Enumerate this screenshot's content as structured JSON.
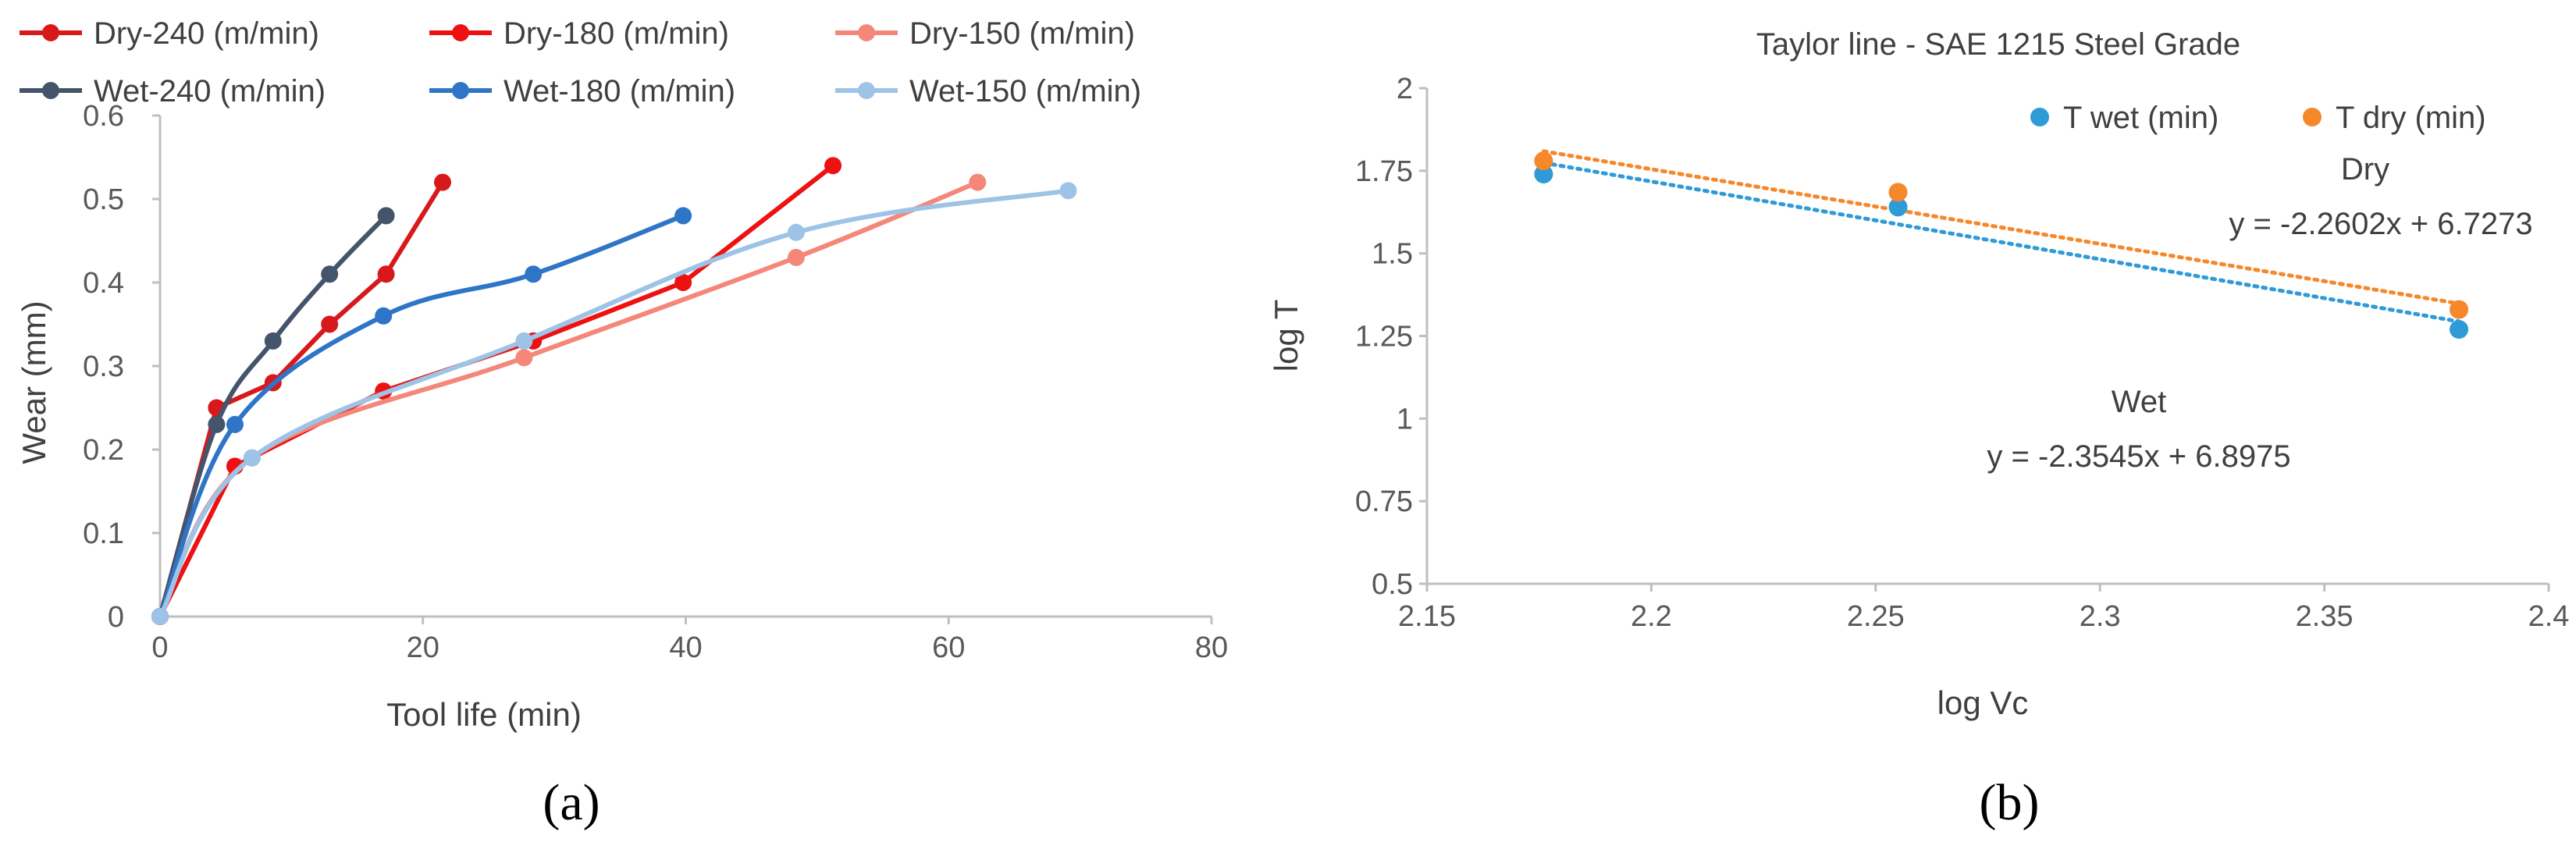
{
  "chart_data": [
    {
      "type": "line",
      "panel_label": "(a)",
      "title": "",
      "xlabel": "Tool life (min)",
      "ylabel": "Wear (mm)",
      "xlim": [
        0,
        80
      ],
      "ylim": [
        0,
        0.6
      ],
      "x_ticks": [
        "0",
        "20",
        "40",
        "60",
        "80"
      ],
      "y_ticks": [
        "0",
        "0.1",
        "0.2",
        "0.3",
        "0.4",
        "0.5",
        "0.6"
      ],
      "legend_position": "top",
      "grid": false,
      "series": [
        {
          "name": "Dry-240 (m/min)",
          "color": "#d7191c",
          "marker": "circle",
          "smooth": false,
          "x": [
            0,
            4.3,
            8.6,
            12.9,
            17.2,
            21.5
          ],
          "y": [
            0,
            0.25,
            0.28,
            0.35,
            0.41,
            0.52
          ]
        },
        {
          "name": "Dry-180 (m/min)",
          "color": "#ee1111",
          "marker": "circle",
          "smooth": false,
          "x": [
            0,
            5.7,
            17,
            28.4,
            39.8,
            51.2
          ],
          "y": [
            0,
            0.18,
            0.27,
            0.33,
            0.4,
            0.54
          ]
        },
        {
          "name": "Dry-150 (m/min)",
          "color": "#f4877a",
          "marker": "circle",
          "smooth": true,
          "x": [
            0,
            7,
            27.7,
            48.4,
            62.2
          ],
          "y": [
            0,
            0.19,
            0.31,
            0.43,
            0.52
          ]
        },
        {
          "name": "Wet-240 (m/min)",
          "color": "#44546a",
          "marker": "circle",
          "smooth": true,
          "x": [
            0,
            4.3,
            8.6,
            12.9,
            17.2
          ],
          "y": [
            0,
            0.23,
            0.33,
            0.41,
            0.48
          ]
        },
        {
          "name": "Wet-180 (m/min)",
          "color": "#2e75c8",
          "marker": "circle",
          "smooth": true,
          "x": [
            0,
            5.7,
            17,
            28.4,
            39.8
          ],
          "y": [
            0,
            0.23,
            0.36,
            0.41,
            0.48
          ]
        },
        {
          "name": "Wet-150 (m/min)",
          "color": "#9dc3e6",
          "marker": "circle",
          "smooth": true,
          "x": [
            0,
            7,
            27.7,
            48.4,
            69.1
          ],
          "y": [
            0,
            0.19,
            0.33,
            0.46,
            0.51
          ]
        }
      ]
    },
    {
      "type": "scatter",
      "panel_label": "(b)",
      "title": "Taylor line - SAE 1215 Steel Grade",
      "xlabel": "log Vc",
      "ylabel": "log T",
      "xlim": [
        2.15,
        2.4
      ],
      "ylim": [
        0.5,
        2
      ],
      "x_ticks": [
        "2.15",
        "2.2",
        "2.25",
        "2.3",
        "2.35",
        "2.4"
      ],
      "y_ticks": [
        "0.5",
        "0.75",
        "1",
        "1.25",
        "1.5",
        "1.75",
        "2"
      ],
      "legend_position": "top-right",
      "grid": false,
      "series": [
        {
          "name": "T wet (min)",
          "color": "#2e9bd6",
          "x": [
            2.176,
            2.255,
            2.38
          ],
          "y": [
            1.74,
            1.64,
            1.27
          ]
        },
        {
          "name": "T dry (min)",
          "color": "#f5882b",
          "x": [
            2.176,
            2.255,
            2.38
          ],
          "y": [
            1.78,
            1.685,
            1.33
          ]
        }
      ],
      "trendlines": [
        {
          "series": "T wet (min)",
          "label": "Wet",
          "equation": "y = -2.3545x + 6.8975",
          "slope": -2.3545,
          "intercept": 6.8975,
          "x_range": [
            2.176,
            2.38
          ],
          "color": "#2e9bd6"
        },
        {
          "series": "T dry (min)",
          "label": "Dry",
          "equation": "y = -2.2602x + 6.7273",
          "slope": -2.2602,
          "intercept": 6.7273,
          "x_range": [
            2.176,
            2.38
          ],
          "color": "#f5882b"
        }
      ]
    }
  ]
}
